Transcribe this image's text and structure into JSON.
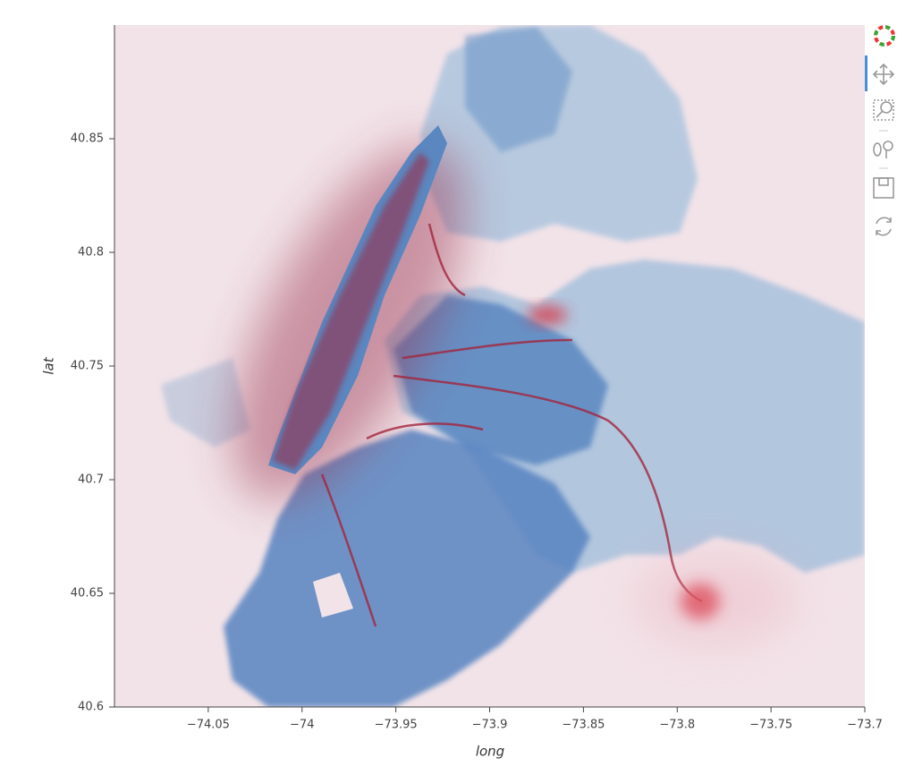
{
  "chart_data": {
    "type": "image",
    "x_label": "long",
    "y_label": "lat",
    "xlim": [
      -74.1,
      -73.7
    ],
    "ylim": [
      40.6,
      40.9
    ],
    "xticks": [
      {
        "value": -74.05,
        "label": "−74.05"
      },
      {
        "value": -74,
        "label": "−74"
      },
      {
        "value": -73.95,
        "label": "−73.95"
      },
      {
        "value": -73.9,
        "label": "−73.9"
      },
      {
        "value": -73.85,
        "label": "−73.85"
      },
      {
        "value": -73.8,
        "label": "−73.8"
      },
      {
        "value": -73.75,
        "label": "−73.75"
      },
      {
        "value": -73.7,
        "label": "−73.7"
      }
    ],
    "yticks": [
      40.6,
      40.65,
      40.7,
      40.75,
      40.8,
      40.85
    ]
  }
}
